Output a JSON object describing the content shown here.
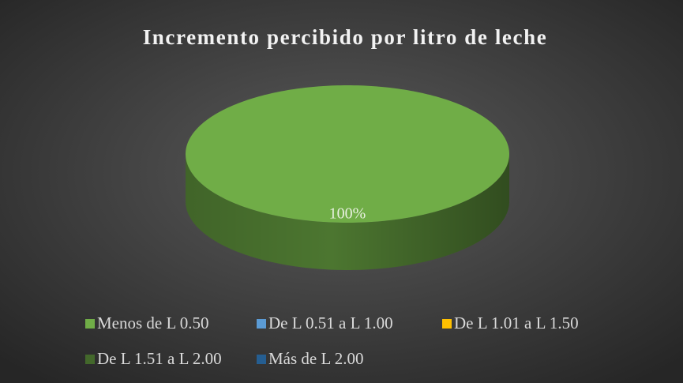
{
  "chart_data": {
    "type": "pie3d",
    "title": "Incremento percibido por litro de leche",
    "categories": [
      "Menos de L 0.50",
      "De L 0.51 a L 1.00",
      "De L 1.01 a L 1.50",
      "De L 1.51 a L 2.00",
      "Más de L 2.00"
    ],
    "values": [
      100,
      0,
      0,
      0,
      0
    ],
    "value_labels": [
      "100%",
      null,
      null,
      null,
      null
    ],
    "colors": [
      "#70ad47",
      "#5b9bd5",
      "#ffc000",
      "#43682b",
      "#255e91"
    ],
    "legend": "bottom"
  }
}
